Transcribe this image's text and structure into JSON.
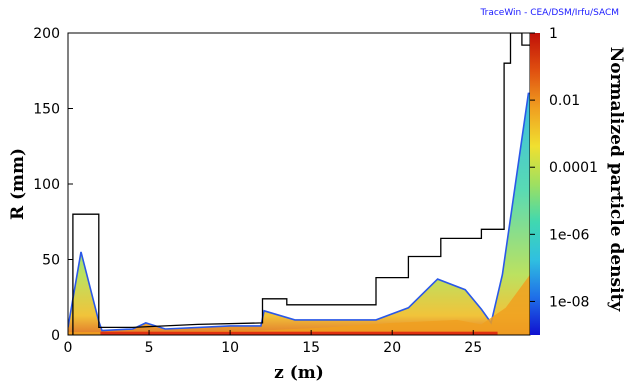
{
  "credit": "TraceWin - CEA/DSM/Irfu/SACM",
  "chart_data": {
    "type": "heatmap",
    "title": "",
    "xlabel": "z (m)",
    "ylabel": "R (mm)",
    "colorbar_label": "Normalized particle density",
    "xlim": [
      0,
      28.5
    ],
    "ylim": [
      0,
      200
    ],
    "x_ticks": [
      0,
      5,
      10,
      15,
      20,
      25
    ],
    "y_ticks": [
      0,
      50,
      100,
      150,
      200
    ],
    "colorbar_scale": "log",
    "colorbar_range": [
      1e-09,
      1
    ],
    "colorbar_ticks": [
      "1",
      "0.01",
      "0.0001",
      "1e-06",
      "1e-08"
    ],
    "colormap": [
      "#1010d0",
      "#1f6fe8",
      "#30c0e0",
      "#40d8b0",
      "#9fe060",
      "#f0e030",
      "#f0a020",
      "#e05010",
      "#c01008"
    ],
    "aperture_outline": [
      [
        0.3,
        0
      ],
      [
        0.3,
        80
      ],
      [
        1.9,
        80
      ],
      [
        1.9,
        5
      ],
      [
        4.0,
        5
      ],
      [
        8.0,
        7
      ],
      [
        12.0,
        8
      ],
      [
        12.0,
        24
      ],
      [
        13.5,
        24
      ],
      [
        13.5,
        20
      ],
      [
        19.0,
        20
      ],
      [
        19.0,
        38
      ],
      [
        21.0,
        38
      ],
      [
        21.0,
        52
      ],
      [
        23.0,
        52
      ],
      [
        23.0,
        64
      ],
      [
        25.5,
        64
      ],
      [
        25.5,
        70
      ],
      [
        26.9,
        70
      ],
      [
        26.9,
        180
      ],
      [
        27.3,
        180
      ],
      [
        27.3,
        200
      ],
      [
        28.0,
        200
      ],
      [
        28.0,
        192
      ],
      [
        28.5,
        192
      ]
    ],
    "envelope_edge": [
      [
        0.0,
        5
      ],
      [
        0.8,
        55
      ],
      [
        1.9,
        9
      ],
      [
        2.1,
        3
      ],
      [
        4.0,
        4
      ],
      [
        4.8,
        8
      ],
      [
        6.0,
        4
      ],
      [
        10.0,
        6
      ],
      [
        11.9,
        6
      ],
      [
        12.1,
        16
      ],
      [
        14.0,
        10
      ],
      [
        16.0,
        10
      ],
      [
        19.0,
        10
      ],
      [
        21.0,
        18
      ],
      [
        22.8,
        37
      ],
      [
        24.5,
        30
      ],
      [
        25.5,
        17
      ],
      [
        26.1,
        8
      ],
      [
        26.8,
        40
      ],
      [
        27.6,
        100
      ],
      [
        28.4,
        160
      ],
      [
        28.5,
        160
      ]
    ],
    "core_edge": [
      [
        0.0,
        2
      ],
      [
        2.0,
        2
      ],
      [
        12.0,
        3
      ],
      [
        16.0,
        5
      ],
      [
        20.0,
        8
      ],
      [
        24.0,
        10
      ],
      [
        25.5,
        7
      ],
      [
        27.0,
        18
      ],
      [
        28.5,
        40
      ]
    ]
  }
}
